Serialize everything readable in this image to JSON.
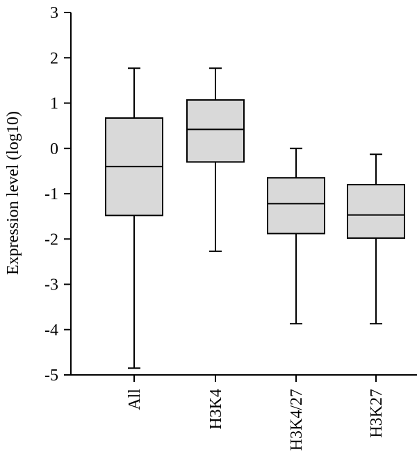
{
  "chart_data": {
    "type": "box",
    "title": "",
    "xlabel": "",
    "ylabel": "Expression level (log10)",
    "ylim": [
      -5,
      3
    ],
    "yticks": [
      3,
      2,
      1,
      0,
      -1,
      -2,
      -3,
      -4,
      -5
    ],
    "categories": [
      "All",
      "H3K4",
      "H3K4/27",
      "H3K27"
    ],
    "boxes": [
      {
        "label": "All",
        "whisker_low": -4.85,
        "q1": -1.48,
        "median": -0.4,
        "q3": 0.67,
        "whisker_high": 1.77
      },
      {
        "label": "H3K4",
        "whisker_low": -2.27,
        "q1": -0.3,
        "median": 0.42,
        "q3": 1.07,
        "whisker_high": 1.77
      },
      {
        "label": "H3K4/27",
        "whisker_low": -3.87,
        "q1": -1.88,
        "median": -1.22,
        "q3": -0.65,
        "whisker_high": 0.0
      },
      {
        "label": "H3K27",
        "whisker_low": -3.87,
        "q1": -1.98,
        "median": -1.47,
        "q3": -0.8,
        "whisker_high": -0.13
      }
    ],
    "box_fill": "#d9d9d9",
    "line_color": "#000000",
    "grid": false,
    "legend": "none"
  }
}
